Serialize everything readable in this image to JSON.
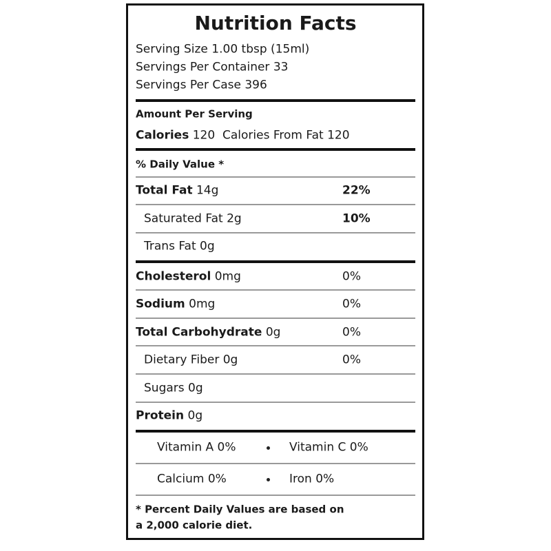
{
  "title": "Nutrition Facts",
  "serving": [
    "Serving Size 1.00 tbsp (15ml)",
    "Servings Per Container 33",
    "Servings Per Case 396"
  ],
  "amount_per_serving": "Amount Per Serving",
  "calories": {
    "label": "Calories",
    "value": "120",
    "fat_label": "Calories From Fat",
    "fat_value": "120"
  },
  "daily_value_header": "% Daily Value *",
  "nutrients": [
    {
      "name": "Total Fat",
      "amount": "14g",
      "dv": "22%"
    },
    {
      "name": "Saturated Fat",
      "amount": "2g",
      "dv": "10%"
    },
    {
      "name": "Trans Fat",
      "amount": "0g"
    },
    {
      "name": "Cholesterol",
      "amount": "0mg",
      "dv": "0%"
    },
    {
      "name": "Sodium",
      "amount": "0mg",
      "dv": "0%"
    },
    {
      "name": "Total Carbohydrate",
      "amount": "0g",
      "dv": "0%"
    },
    {
      "name": "Dietary Fiber",
      "amount": "0g",
      "dv": "0%"
    },
    {
      "name": "Sugars",
      "amount": "0g"
    },
    {
      "name": "Protein",
      "amount": "0g"
    }
  ],
  "vitamins": [
    [
      "Vitamin A 0%",
      "Vitamin C 0%"
    ],
    [
      "Calcium 0%",
      "Iron 0%"
    ]
  ],
  "footnote": [
    "* Percent Daily Values are based on",
    "a 2,000 calorie diet."
  ]
}
